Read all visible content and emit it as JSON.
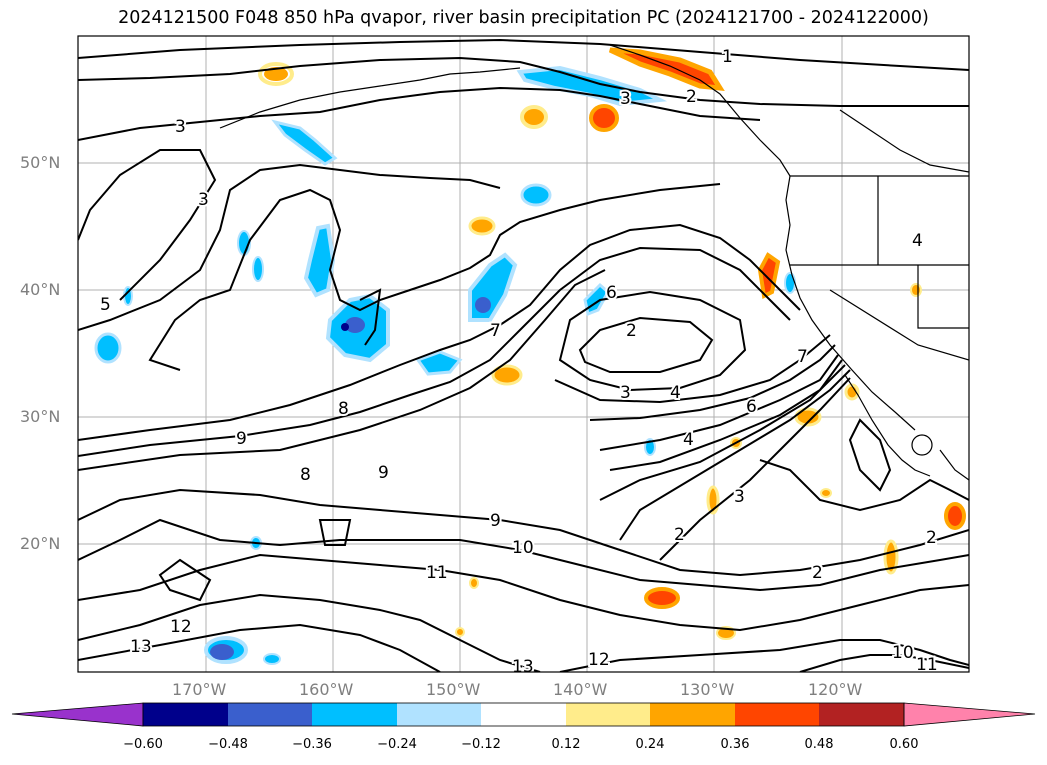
{
  "title": "2024121500 F048 850 hPa qvapor, river basin precipitation PC (2024121700 - 2024122000)",
  "lat_labels": [
    "50°N",
    "40°N",
    "30°N",
    "20°N"
  ],
  "lon_labels": [
    "170°W",
    "160°W",
    "150°W",
    "140°W",
    "130°W",
    "120°W"
  ],
  "colorbar": {
    "ticks": [
      "−0.60",
      "−0.48",
      "−0.36",
      "−0.24",
      "−0.12",
      "0.12",
      "0.24",
      "0.36",
      "0.48",
      "0.60"
    ],
    "colors": [
      "#9932cc",
      "#00008b",
      "#3a5fcd",
      "#00bfff",
      "#b0e2ff",
      "#ffffff",
      "#ffec8b",
      "#ffa500",
      "#ff4500",
      "#b22222",
      "#ff82ab"
    ]
  },
  "contour_labels": [
    "1",
    "2",
    "3",
    "3",
    "3",
    "4",
    "5",
    "6",
    "7",
    "8",
    "9",
    "9",
    "10",
    "11",
    "12",
    "13",
    "2",
    "3",
    "4",
    "6",
    "7",
    "8",
    "9",
    "10",
    "11",
    "12",
    "13",
    "2",
    "2",
    "2",
    "3",
    "4"
  ]
}
